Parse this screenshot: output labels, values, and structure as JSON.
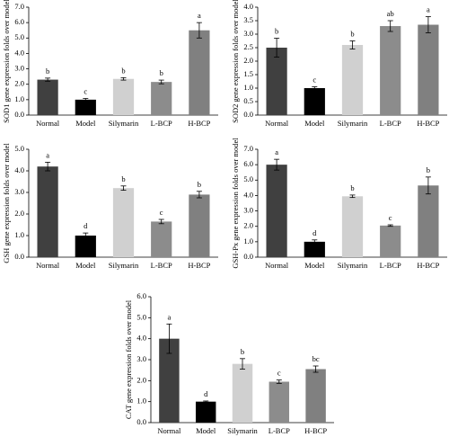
{
  "chart_data": [
    {
      "type": "bar",
      "ylabel": "SOD1 gene expression folds over model",
      "categories": [
        "Normal",
        "Model",
        "Silymarin",
        "L-BCP",
        "H-BCP"
      ],
      "values": [
        2.3,
        1.0,
        2.35,
        2.15,
        5.5
      ],
      "errors": [
        0.1,
        0.08,
        0.08,
        0.12,
        0.5
      ],
      "annotations": [
        "b",
        "c",
        "b",
        "b",
        "a"
      ],
      "colors": [
        "#404040",
        "#000000",
        "#d0d0d0",
        "#8c8c8c",
        "#808080"
      ],
      "ylim": [
        0,
        7
      ],
      "yticks": [
        {
          "value": 0,
          "label": "0.0"
        },
        {
          "value": 1,
          "label": "1.0"
        },
        {
          "value": 2,
          "label": "2.0"
        },
        {
          "value": 3,
          "label": "3.0"
        },
        {
          "value": 4,
          "label": "4.0"
        },
        {
          "value": 5,
          "label": "5.0"
        },
        {
          "value": 6,
          "label": "6.0"
        },
        {
          "value": 7,
          "label": "7.0"
        }
      ]
    },
    {
      "type": "bar",
      "ylabel": "SOD2 gene expression folds over model",
      "categories": [
        "Normal",
        "Model",
        "Silymarin",
        "L-BCP",
        "H-BCP"
      ],
      "values": [
        2.5,
        1.0,
        2.6,
        3.3,
        3.35
      ],
      "errors": [
        0.35,
        0.05,
        0.15,
        0.2,
        0.3
      ],
      "annotations": [
        "b",
        "c",
        "b",
        "ab",
        "a"
      ],
      "colors": [
        "#404040",
        "#000000",
        "#d0d0d0",
        "#8c8c8c",
        "#808080"
      ],
      "ylim": [
        0,
        4
      ],
      "yticks": [
        {
          "value": 0,
          "label": "0.0"
        },
        0.5,
        {
          "value": 1,
          "label": "1.0"
        },
        1.5,
        {
          "value": 2,
          "label": "2.0"
        },
        2.5,
        {
          "value": 3,
          "label": "3.0"
        },
        3.5,
        {
          "value": 4,
          "label": "4.0"
        }
      ]
    },
    {
      "type": "bar",
      "ylabel": "GSH gene expression folds over model",
      "categories": [
        "Normal",
        "Model",
        "Silymarin",
        "L-BCP",
        "H-BCP"
      ],
      "values": [
        4.2,
        1.0,
        3.2,
        1.65,
        2.9
      ],
      "errors": [
        0.2,
        0.12,
        0.1,
        0.1,
        0.15
      ],
      "annotations": [
        "a",
        "d",
        "b",
        "c",
        "b"
      ],
      "colors": [
        "#404040",
        "#000000",
        "#d0d0d0",
        "#8c8c8c",
        "#808080"
      ],
      "ylim": [
        0,
        5
      ],
      "yticks": [
        {
          "value": 0,
          "label": "0.0"
        },
        {
          "value": 1,
          "label": "1.0"
        },
        {
          "value": 2,
          "label": "2.0"
        },
        {
          "value": 3,
          "label": "3.0"
        },
        {
          "value": 4,
          "label": "4.0"
        },
        {
          "value": 5,
          "label": "5.0"
        }
      ]
    },
    {
      "type": "bar",
      "ylabel": "GSH-Px gene expression folds over model",
      "categories": [
        "Normal",
        "Model",
        "Silymarin",
        "L-BCP",
        "H-BCP"
      ],
      "values": [
        6.0,
        1.0,
        3.95,
        2.05,
        4.65
      ],
      "errors": [
        0.35,
        0.12,
        0.08,
        0.05,
        0.55
      ],
      "annotations": [
        "a",
        "d",
        "b",
        "c",
        "b"
      ],
      "colors": [
        "#404040",
        "#000000",
        "#d0d0d0",
        "#8c8c8c",
        "#808080"
      ],
      "ylim": [
        0,
        7
      ],
      "yticks": [
        {
          "value": 0,
          "label": "0.0"
        },
        {
          "value": 1,
          "label": "1.0"
        },
        {
          "value": 2,
          "label": "2.0"
        },
        {
          "value": 3,
          "label": "3.0"
        },
        {
          "value": 4,
          "label": "4.0"
        },
        {
          "value": 5,
          "label": "5.0"
        },
        {
          "value": 6,
          "label": "6.0"
        },
        {
          "value": 7,
          "label": "7.0"
        }
      ]
    },
    {
      "type": "bar",
      "ylabel": "CAT gene expression folds over model",
      "categories": [
        "Normal",
        "Model",
        "Silymarin",
        "L-BCP",
        "H-BCP"
      ],
      "values": [
        4.0,
        1.0,
        2.8,
        1.95,
        2.55
      ],
      "errors": [
        0.7,
        0.03,
        0.25,
        0.08,
        0.15
      ],
      "annotations": [
        "a",
        "d",
        "b",
        "c",
        "bc"
      ],
      "colors": [
        "#404040",
        "#000000",
        "#d0d0d0",
        "#8c8c8c",
        "#808080"
      ],
      "ylim": [
        0,
        6
      ],
      "yticks": [
        {
          "value": 0,
          "label": "0.0"
        },
        {
          "value": 1,
          "label": "1.0"
        },
        {
          "value": 2,
          "label": "2.0"
        },
        {
          "value": 3,
          "label": "3.0"
        },
        {
          "value": 4,
          "label": "4.0"
        },
        {
          "value": 5,
          "label": "5.0"
        },
        {
          "value": 6,
          "label": "6.0"
        }
      ]
    }
  ]
}
